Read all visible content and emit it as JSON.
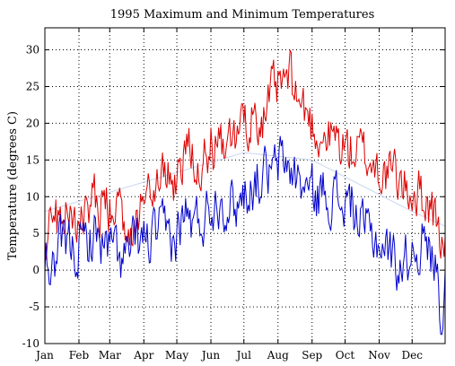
{
  "chart_data": {
    "type": "line",
    "title": "1995 Maximum and Minimum Temperatures",
    "xlabel": "",
    "ylabel": "Temperature (degrees C)",
    "x_tick_labels": [
      "Jan",
      "Feb",
      "Mar",
      "Apr",
      "May",
      "Jun",
      "Jul",
      "Aug",
      "Sep",
      "Oct",
      "Nov",
      "Dec"
    ],
    "month_days": [
      31,
      28,
      31,
      30,
      31,
      30,
      31,
      31,
      30,
      31,
      30,
      31
    ],
    "xlim": [
      1,
      365
    ],
    "ylim": [
      -10,
      33
    ],
    "y_ticks": [
      -10,
      -5,
      0,
      5,
      10,
      15,
      20,
      25,
      30
    ],
    "grid": true,
    "grid_style": "dotted",
    "colors": {
      "max": "#dd0000",
      "min": "#0000cc",
      "trend": "#c8d4f0",
      "grid": "#000000"
    },
    "series_monthly_anchors": {
      "note_units": "degrees C, day-of-year",
      "max": [
        [
          1,
          4
        ],
        [
          8,
          6
        ],
        [
          16,
          8
        ],
        [
          24,
          7
        ],
        [
          32,
          8
        ],
        [
          40,
          9
        ],
        [
          48,
          9
        ],
        [
          56,
          8
        ],
        [
          64,
          8
        ],
        [
          72,
          7
        ],
        [
          80,
          6
        ],
        [
          88,
          9
        ],
        [
          96,
          10
        ],
        [
          104,
          12
        ],
        [
          112,
          13
        ],
        [
          120,
          12
        ],
        [
          128,
          17
        ],
        [
          136,
          16
        ],
        [
          144,
          15
        ],
        [
          152,
          17
        ],
        [
          160,
          16
        ],
        [
          168,
          16
        ],
        [
          176,
          18
        ],
        [
          184,
          20
        ],
        [
          192,
          22
        ],
        [
          200,
          21
        ],
        [
          208,
          24
        ],
        [
          216,
          25
        ],
        [
          224,
          26
        ],
        [
          232,
          23
        ],
        [
          240,
          21
        ],
        [
          248,
          19
        ],
        [
          256,
          18
        ],
        [
          264,
          18
        ],
        [
          272,
          17
        ],
        [
          280,
          16
        ],
        [
          288,
          16
        ],
        [
          296,
          15
        ],
        [
          304,
          14
        ],
        [
          312,
          13
        ],
        [
          320,
          13
        ],
        [
          328,
          11
        ],
        [
          336,
          11
        ],
        [
          344,
          10
        ],
        [
          352,
          9
        ],
        [
          360,
          5
        ],
        [
          365,
          2
        ]
      ],
      "min": [
        [
          1,
          2
        ],
        [
          8,
          0
        ],
        [
          16,
          3
        ],
        [
          24,
          3
        ],
        [
          32,
          3
        ],
        [
          40,
          4
        ],
        [
          48,
          5
        ],
        [
          56,
          3
        ],
        [
          64,
          3
        ],
        [
          72,
          1
        ],
        [
          80,
          3
        ],
        [
          88,
          4
        ],
        [
          96,
          4
        ],
        [
          104,
          5
        ],
        [
          112,
          5
        ],
        [
          120,
          4
        ],
        [
          128,
          8
        ],
        [
          136,
          6
        ],
        [
          144,
          7
        ],
        [
          152,
          9
        ],
        [
          160,
          10
        ],
        [
          168,
          9
        ],
        [
          176,
          9
        ],
        [
          184,
          11
        ],
        [
          192,
          12
        ],
        [
          200,
          13
        ],
        [
          208,
          13
        ],
        [
          216,
          15
        ],
        [
          224,
          14
        ],
        [
          232,
          12
        ],
        [
          240,
          11
        ],
        [
          248,
          10
        ],
        [
          256,
          11
        ],
        [
          264,
          10
        ],
        [
          272,
          9
        ],
        [
          280,
          9
        ],
        [
          288,
          6
        ],
        [
          296,
          5
        ],
        [
          304,
          4
        ],
        [
          312,
          3
        ],
        [
          320,
          1
        ],
        [
          328,
          1
        ],
        [
          336,
          3
        ],
        [
          344,
          4
        ],
        [
          352,
          2
        ],
        [
          358,
          0
        ],
        [
          362,
          -7
        ],
        [
          365,
          -3
        ]
      ],
      "trend": [
        [
          1,
          8
        ],
        [
          182,
          16
        ],
        [
          244,
          15
        ],
        [
          335,
          8
        ],
        [
          365,
          6
        ]
      ]
    }
  }
}
